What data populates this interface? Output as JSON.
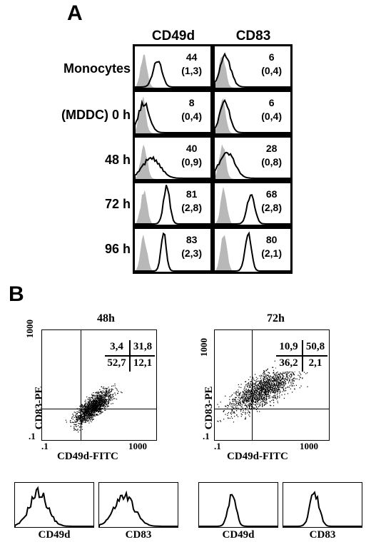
{
  "panel_a": {
    "letter": "A",
    "columns": [
      "CD49d",
      "CD83"
    ],
    "rows": [
      {
        "label": "Monocytes",
        "cd49d": {
          "pct": "44",
          "mfi": "(1,3)"
        },
        "cd83": {
          "pct": "6",
          "mfi": "(0,4)"
        }
      },
      {
        "label": "(MDDC) 0 h",
        "cd49d": {
          "pct": "8",
          "mfi": "(0,4)"
        },
        "cd83": {
          "pct": "6",
          "mfi": "(0,4)"
        }
      },
      {
        "label": "48 h",
        "cd49d": {
          "pct": "40",
          "mfi": "(0,9)"
        },
        "cd83": {
          "pct": "28",
          "mfi": "(0,8)"
        }
      },
      {
        "label": "72 h",
        "cd49d": {
          "pct": "81",
          "mfi": "(2,8)"
        },
        "cd83": {
          "pct": "68",
          "mfi": "(2,8)"
        }
      },
      {
        "label": "96 h",
        "cd49d": {
          "pct": "83",
          "mfi": "(2,3)"
        },
        "cd83": {
          "pct": "80",
          "mfi": "(2,1)"
        }
      }
    ]
  },
  "panel_b": {
    "letter": "B",
    "plots": [
      {
        "title": "48h",
        "ylabel": "CD83-PE",
        "xlabel": "CD49d-FITC",
        "y_ticks": [
          "1000",
          ".1"
        ],
        "x_ticks": [
          ".1",
          "1000"
        ],
        "quadrants": {
          "ul": "3,4",
          "ur": "31,8",
          "ll": "52,7",
          "lr": "12,1"
        }
      },
      {
        "title": "72h",
        "ylabel": "CD83-PE",
        "xlabel": "CD49d-FITC",
        "y_ticks": [
          "1000",
          ".1"
        ],
        "x_ticks": [
          ".1",
          "1000"
        ],
        "quadrants": {
          "ul": "10,9",
          "ur": "50,8",
          "ll": "36,2",
          "lr": "2,1"
        }
      }
    ],
    "small_histograms": [
      "CD49d",
      "CD83",
      "CD49d",
      "CD83"
    ]
  }
}
